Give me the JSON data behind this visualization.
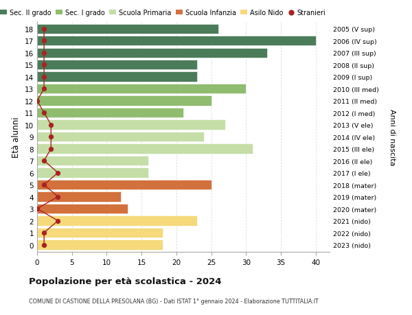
{
  "ages": [
    18,
    17,
    16,
    15,
    14,
    13,
    12,
    11,
    10,
    9,
    8,
    7,
    6,
    5,
    4,
    3,
    2,
    1,
    0
  ],
  "right_labels": [
    "2005 (V sup)",
    "2006 (IV sup)",
    "2007 (III sup)",
    "2008 (II sup)",
    "2009 (I sup)",
    "2010 (III med)",
    "2011 (II med)",
    "2012 (I med)",
    "2013 (V ele)",
    "2014 (IV ele)",
    "2015 (III ele)",
    "2016 (II ele)",
    "2017 (I ele)",
    "2018 (mater)",
    "2019 (mater)",
    "2020 (mater)",
    "2021 (nido)",
    "2022 (nido)",
    "2023 (nido)"
  ],
  "bar_values": [
    26,
    40,
    33,
    23,
    23,
    30,
    25,
    21,
    27,
    24,
    31,
    16,
    16,
    25,
    12,
    13,
    23,
    18,
    18
  ],
  "bar_colors": [
    "#4a7c59",
    "#4a7c59",
    "#4a7c59",
    "#4a7c59",
    "#4a7c59",
    "#8fbc6e",
    "#8fbc6e",
    "#8fbc6e",
    "#c5dea8",
    "#c5dea8",
    "#c5dea8",
    "#c5dea8",
    "#c5dea8",
    "#d2713c",
    "#d2713c",
    "#d2713c",
    "#f5d97a",
    "#f5d97a",
    "#f5d97a"
  ],
  "stranieri_values": [
    1,
    1,
    1,
    1,
    1,
    1,
    0,
    1,
    2,
    2,
    2,
    1,
    3,
    1,
    3,
    0,
    3,
    1,
    1
  ],
  "title": "Popolazione per età scolastica - 2024",
  "subtitle": "COMUNE DI CASTIONE DELLA PRESOLANA (BG) - Dati ISTAT 1° gennaio 2024 - Elaborazione TUTTITALIA.IT",
  "ylabel": "Età alunni",
  "right_ylabel": "Anni di nascita",
  "xlim": [
    0,
    42
  ],
  "xticks": [
    0,
    5,
    10,
    15,
    20,
    25,
    30,
    35,
    40
  ],
  "legend_labels": [
    "Sec. II grado",
    "Sec. I grado",
    "Scuola Primaria",
    "Scuola Infanzia",
    "Asilo Nido",
    "Stranieri"
  ],
  "legend_colors": [
    "#4a7c59",
    "#8fbc6e",
    "#c5dea8",
    "#d2713c",
    "#f5d97a",
    "#aa2222"
  ],
  "bg_color": "#ffffff",
  "grid_color": "#dddddd",
  "stranieri_line_color": "#aa2222",
  "bar_height": 0.82
}
